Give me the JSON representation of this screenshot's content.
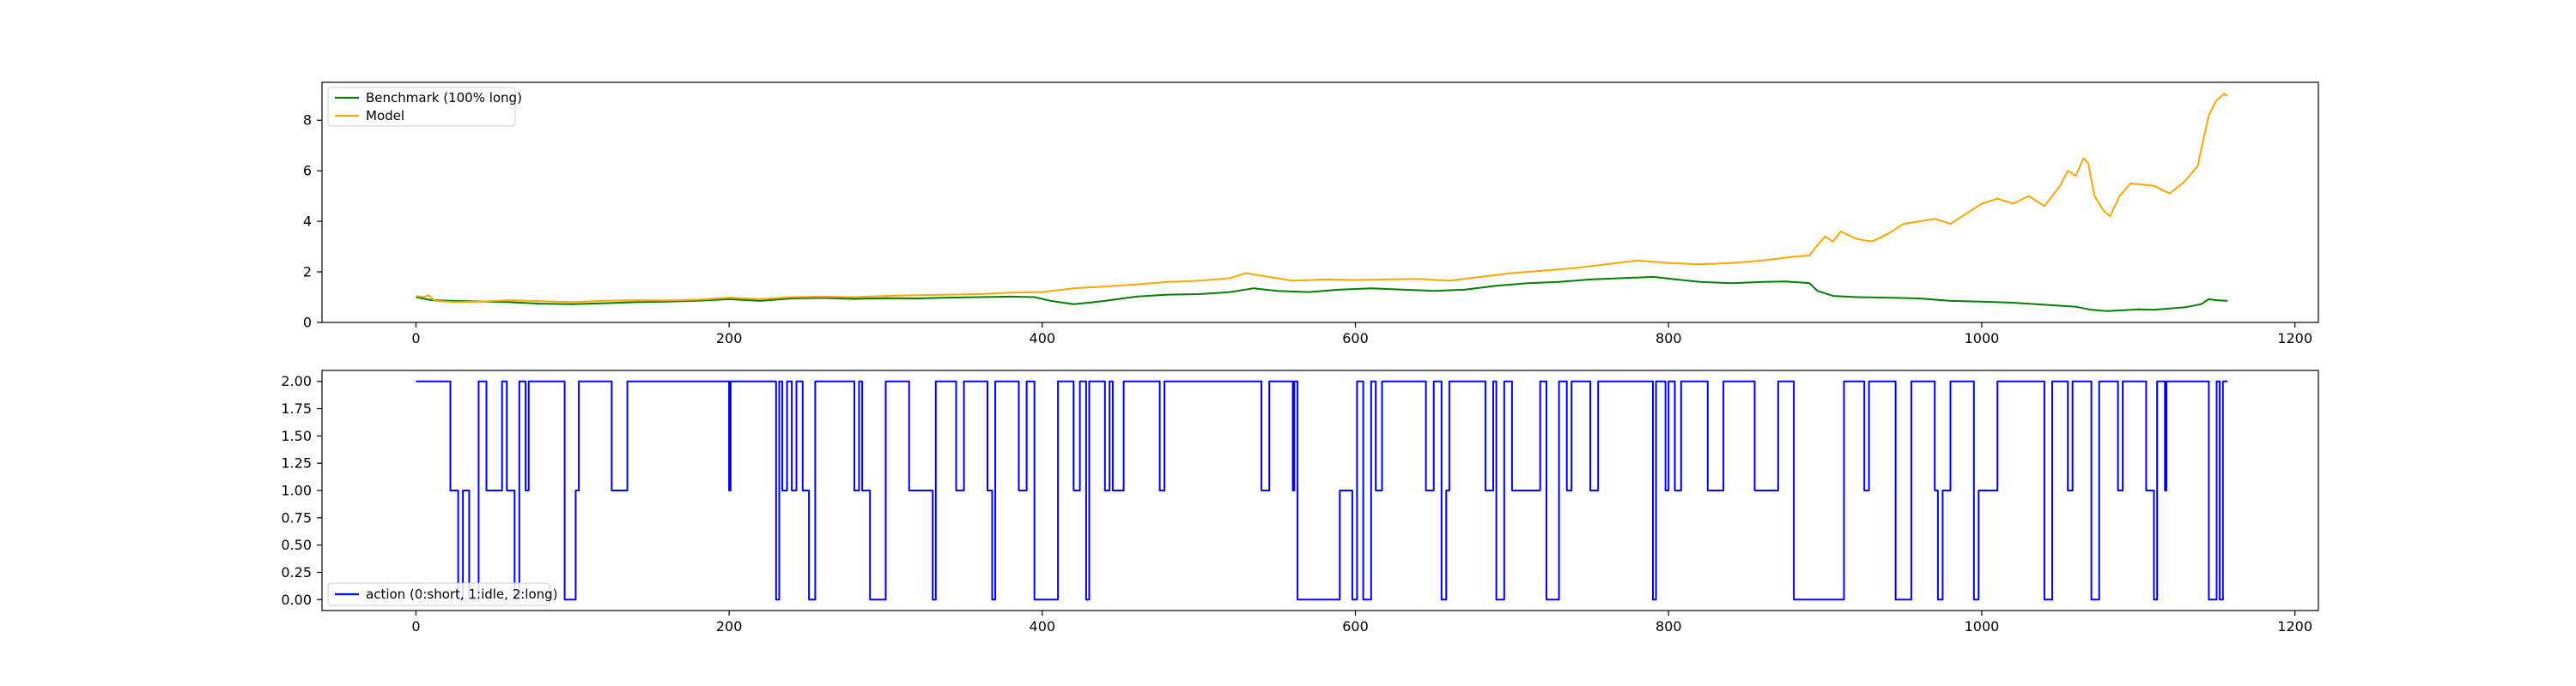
{
  "chart_data": [
    {
      "type": "line",
      "xlim": [
        -60,
        1215
      ],
      "ylim": [
        0,
        9.5
      ],
      "x_ticks": [
        0,
        200,
        400,
        600,
        800,
        1000,
        1200
      ],
      "y_ticks": [
        0,
        2,
        4,
        6,
        8
      ],
      "grid": false,
      "legend_position": "top-left",
      "series": [
        {
          "name": "Benchmark (100% long)",
          "color": "#008000",
          "points": [
            [
              0,
              1.0
            ],
            [
              10,
              0.88
            ],
            [
              25,
              0.85
            ],
            [
              40,
              0.83
            ],
            [
              60,
              0.8
            ],
            [
              80,
              0.74
            ],
            [
              100,
              0.72
            ],
            [
              120,
              0.76
            ],
            [
              140,
              0.8
            ],
            [
              160,
              0.82
            ],
            [
              180,
              0.86
            ],
            [
              200,
              0.92
            ],
            [
              220,
              0.85
            ],
            [
              240,
              0.95
            ],
            [
              260,
              0.97
            ],
            [
              280,
              0.93
            ],
            [
              300,
              0.96
            ],
            [
              320,
              0.95
            ],
            [
              340,
              0.98
            ],
            [
              360,
              1.0
            ],
            [
              380,
              1.02
            ],
            [
              395,
              1.0
            ],
            [
              405,
              0.86
            ],
            [
              420,
              0.72
            ],
            [
              440,
              0.85
            ],
            [
              460,
              1.02
            ],
            [
              480,
              1.1
            ],
            [
              500,
              1.12
            ],
            [
              520,
              1.2
            ],
            [
              535,
              1.35
            ],
            [
              550,
              1.25
            ],
            [
              570,
              1.2
            ],
            [
              590,
              1.3
            ],
            [
              610,
              1.35
            ],
            [
              630,
              1.3
            ],
            [
              650,
              1.25
            ],
            [
              670,
              1.3
            ],
            [
              690,
              1.45
            ],
            [
              710,
              1.55
            ],
            [
              730,
              1.6
            ],
            [
              750,
              1.7
            ],
            [
              770,
              1.75
            ],
            [
              790,
              1.8
            ],
            [
              805,
              1.7
            ],
            [
              820,
              1.6
            ],
            [
              840,
              1.55
            ],
            [
              860,
              1.6
            ],
            [
              875,
              1.62
            ],
            [
              890,
              1.55
            ],
            [
              895,
              1.25
            ],
            [
              905,
              1.05
            ],
            [
              920,
              1.0
            ],
            [
              940,
              0.98
            ],
            [
              960,
              0.95
            ],
            [
              980,
              0.85
            ],
            [
              1000,
              0.82
            ],
            [
              1020,
              0.78
            ],
            [
              1040,
              0.7
            ],
            [
              1060,
              0.62
            ],
            [
              1070,
              0.5
            ],
            [
              1080,
              0.45
            ],
            [
              1090,
              0.48
            ],
            [
              1100,
              0.52
            ],
            [
              1110,
              0.5
            ],
            [
              1120,
              0.55
            ],
            [
              1130,
              0.6
            ],
            [
              1140,
              0.72
            ],
            [
              1145,
              0.92
            ],
            [
              1150,
              0.88
            ],
            [
              1157,
              0.85
            ]
          ]
        },
        {
          "name": "Model",
          "color": "#ffa500",
          "points": [
            [
              0,
              1.05
            ],
            [
              5,
              1.0
            ],
            [
              8,
              1.08
            ],
            [
              12,
              0.85
            ],
            [
              25,
              0.8
            ],
            [
              40,
              0.82
            ],
            [
              60,
              0.88
            ],
            [
              80,
              0.84
            ],
            [
              100,
              0.8
            ],
            [
              120,
              0.86
            ],
            [
              140,
              0.88
            ],
            [
              160,
              0.87
            ],
            [
              180,
              0.9
            ],
            [
              200,
              0.98
            ],
            [
              220,
              0.92
            ],
            [
              240,
              1.0
            ],
            [
              260,
              1.02
            ],
            [
              280,
              1.0
            ],
            [
              300,
              1.05
            ],
            [
              320,
              1.08
            ],
            [
              340,
              1.1
            ],
            [
              360,
              1.12
            ],
            [
              380,
              1.18
            ],
            [
              400,
              1.2
            ],
            [
              420,
              1.35
            ],
            [
              440,
              1.42
            ],
            [
              460,
              1.5
            ],
            [
              480,
              1.6
            ],
            [
              500,
              1.65
            ],
            [
              520,
              1.75
            ],
            [
              530,
              1.95
            ],
            [
              540,
              1.85
            ],
            [
              560,
              1.65
            ],
            [
              580,
              1.7
            ],
            [
              600,
              1.68
            ],
            [
              620,
              1.7
            ],
            [
              640,
              1.72
            ],
            [
              660,
              1.65
            ],
            [
              680,
              1.8
            ],
            [
              700,
              1.95
            ],
            [
              720,
              2.05
            ],
            [
              740,
              2.15
            ],
            [
              760,
              2.3
            ],
            [
              780,
              2.45
            ],
            [
              800,
              2.35
            ],
            [
              820,
              2.3
            ],
            [
              840,
              2.35
            ],
            [
              860,
              2.45
            ],
            [
              880,
              2.6
            ],
            [
              890,
              2.65
            ],
            [
              895,
              3.05
            ],
            [
              900,
              3.4
            ],
            [
              905,
              3.2
            ],
            [
              910,
              3.6
            ],
            [
              920,
              3.3
            ],
            [
              930,
              3.2
            ],
            [
              940,
              3.5
            ],
            [
              950,
              3.9
            ],
            [
              960,
              4.0
            ],
            [
              970,
              4.1
            ],
            [
              980,
              3.9
            ],
            [
              990,
              4.3
            ],
            [
              1000,
              4.7
            ],
            [
              1010,
              4.9
            ],
            [
              1020,
              4.7
            ],
            [
              1030,
              5.0
            ],
            [
              1040,
              4.6
            ],
            [
              1050,
              5.4
            ],
            [
              1055,
              6.0
            ],
            [
              1060,
              5.8
            ],
            [
              1065,
              6.5
            ],
            [
              1068,
              6.3
            ],
            [
              1072,
              5.0
            ],
            [
              1078,
              4.4
            ],
            [
              1082,
              4.2
            ],
            [
              1088,
              5.0
            ],
            [
              1095,
              5.5
            ],
            [
              1110,
              5.4
            ],
            [
              1120,
              5.1
            ],
            [
              1130,
              5.6
            ],
            [
              1138,
              6.2
            ],
            [
              1140,
              6.8
            ],
            [
              1145,
              8.2
            ],
            [
              1150,
              8.8
            ],
            [
              1155,
              9.05
            ],
            [
              1157,
              8.95
            ]
          ]
        }
      ]
    },
    {
      "type": "line",
      "xlim": [
        -60,
        1215
      ],
      "ylim": [
        -0.1,
        2.1
      ],
      "x_ticks": [
        0,
        200,
        400,
        600,
        800,
        1000,
        1200
      ],
      "y_ticks": [
        "0.00",
        "0.25",
        "0.50",
        "0.75",
        "1.00",
        "1.25",
        "1.50",
        "1.75",
        "2.00"
      ],
      "grid": false,
      "legend_position": "bottom-left",
      "series": [
        {
          "name": "action (0:short, 1:idle, 2:long)",
          "color": "#0000ff",
          "steps": [
            [
              0,
              2
            ],
            [
              22,
              1
            ],
            [
              27,
              0
            ],
            [
              30,
              1
            ],
            [
              34,
              0
            ],
            [
              40,
              2
            ],
            [
              45,
              1
            ],
            [
              55,
              2
            ],
            [
              58,
              1
            ],
            [
              63,
              0
            ],
            [
              66,
              2
            ],
            [
              70,
              1
            ],
            [
              72,
              2
            ],
            [
              95,
              0
            ],
            [
              102,
              1
            ],
            [
              104,
              2
            ],
            [
              125,
              1
            ],
            [
              135,
              2
            ],
            [
              200,
              1
            ],
            [
              201,
              2
            ],
            [
              230,
              0
            ],
            [
              232,
              2
            ],
            [
              234,
              1
            ],
            [
              237,
              2
            ],
            [
              240,
              1
            ],
            [
              243,
              2
            ],
            [
              247,
              1
            ],
            [
              251,
              0
            ],
            [
              255,
              2
            ],
            [
              280,
              1
            ],
            [
              283,
              2
            ],
            [
              285,
              1
            ],
            [
              290,
              0
            ],
            [
              300,
              2
            ],
            [
              315,
              1
            ],
            [
              330,
              0
            ],
            [
              332,
              2
            ],
            [
              345,
              1
            ],
            [
              350,
              2
            ],
            [
              365,
              1
            ],
            [
              368,
              0
            ],
            [
              370,
              2
            ],
            [
              385,
              1
            ],
            [
              390,
              2
            ],
            [
              395,
              0
            ],
            [
              410,
              2
            ],
            [
              420,
              1
            ],
            [
              424,
              2
            ],
            [
              428,
              0
            ],
            [
              430,
              2
            ],
            [
              440,
              1
            ],
            [
              443,
              2
            ],
            [
              445,
              1
            ],
            [
              452,
              2
            ],
            [
              475,
              1
            ],
            [
              478,
              2
            ],
            [
              540,
              1
            ],
            [
              545,
              2
            ],
            [
              560,
              1
            ],
            [
              561,
              2
            ],
            [
              563,
              0
            ],
            [
              590,
              1
            ],
            [
              598,
              0
            ],
            [
              601,
              2
            ],
            [
              605,
              0
            ],
            [
              610,
              2
            ],
            [
              613,
              1
            ],
            [
              617,
              2
            ],
            [
              645,
              1
            ],
            [
              650,
              2
            ],
            [
              655,
              0
            ],
            [
              658,
              1
            ],
            [
              660,
              2
            ],
            [
              683,
              1
            ],
            [
              688,
              2
            ],
            [
              690,
              0
            ],
            [
              695,
              2
            ],
            [
              700,
              1
            ],
            [
              718,
              2
            ],
            [
              722,
              0
            ],
            [
              730,
              2
            ],
            [
              735,
              1
            ],
            [
              738,
              2
            ],
            [
              750,
              1
            ],
            [
              755,
              2
            ],
            [
              790,
              0
            ],
            [
              792,
              2
            ],
            [
              798,
              1
            ],
            [
              800,
              2
            ],
            [
              804,
              1
            ],
            [
              808,
              2
            ],
            [
              825,
              1
            ],
            [
              835,
              2
            ],
            [
              855,
              1
            ],
            [
              870,
              2
            ],
            [
              880,
              0
            ],
            [
              912,
              2
            ],
            [
              925,
              1
            ],
            [
              928,
              2
            ],
            [
              945,
              0
            ],
            [
              955,
              2
            ],
            [
              970,
              1
            ],
            [
              972,
              0
            ],
            [
              975,
              1
            ],
            [
              980,
              2
            ],
            [
              995,
              0
            ],
            [
              998,
              1
            ],
            [
              1010,
              2
            ],
            [
              1040,
              0
            ],
            [
              1045,
              2
            ],
            [
              1055,
              1
            ],
            [
              1058,
              2
            ],
            [
              1070,
              0
            ],
            [
              1075,
              2
            ],
            [
              1087,
              1
            ],
            [
              1090,
              2
            ],
            [
              1105,
              1
            ],
            [
              1110,
              0
            ],
            [
              1112,
              2
            ],
            [
              1117,
              1
            ],
            [
              1118,
              2
            ],
            [
              1145,
              0
            ],
            [
              1150,
              2
            ],
            [
              1152,
              0
            ],
            [
              1154,
              2
            ],
            [
              1157,
              2
            ]
          ]
        }
      ]
    }
  ]
}
